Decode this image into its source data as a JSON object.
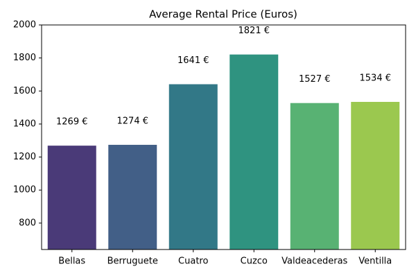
{
  "chart_data": {
    "type": "bar",
    "title": "Average Rental Price (Euros)",
    "categories": [
      "Bellas",
      "Berruguete",
      "Cuatro",
      "Cuzco",
      "Valdeacederas",
      "Ventilla"
    ],
    "values": [
      1269,
      1274,
      1641,
      1821,
      1527,
      1534
    ],
    "value_labels": [
      "1269 €",
      "1274 €",
      "1641 €",
      "1821 €",
      "1527 €",
      "1534 €"
    ],
    "colors": [
      "#4a3a78",
      "#425f87",
      "#327887",
      "#2f9380",
      "#58b273",
      "#9bc84f"
    ],
    "ylim": [
      640,
      2000
    ],
    "yticks": [
      800,
      1000,
      1200,
      1400,
      1600,
      1800,
      2000
    ]
  }
}
